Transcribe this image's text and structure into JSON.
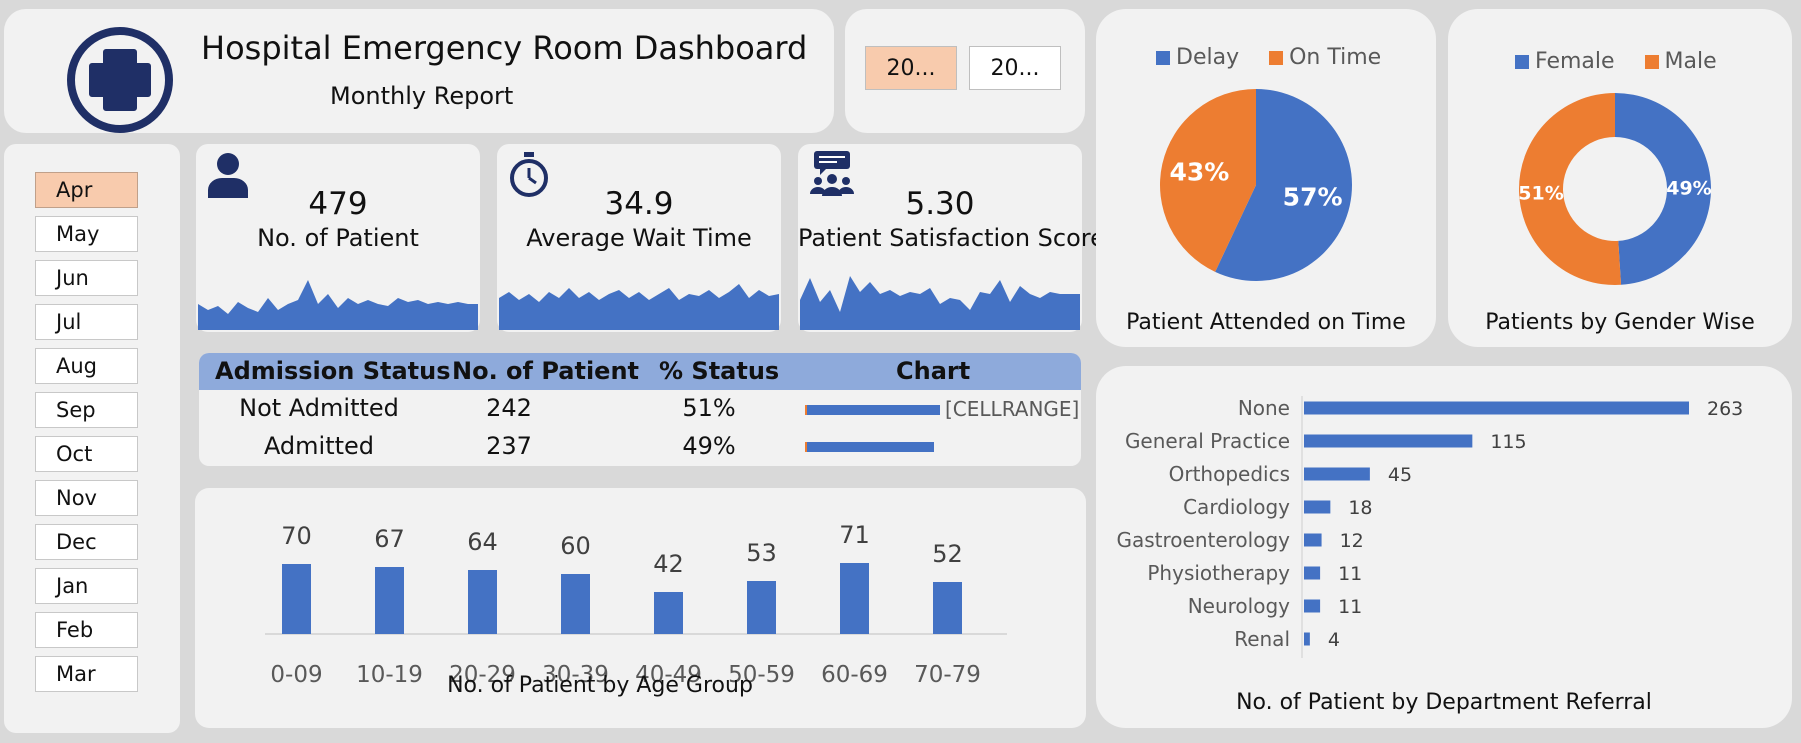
{
  "header": {
    "title": "Hospital Emergency Room Dashboard",
    "subtitle": "Monthly Report"
  },
  "year_slicer": [
    {
      "label": "20...",
      "selected": true
    },
    {
      "label": "20...",
      "selected": false
    }
  ],
  "month_slicer": [
    {
      "label": "Apr",
      "selected": true
    },
    {
      "label": "May"
    },
    {
      "label": "Jun"
    },
    {
      "label": "Jul"
    },
    {
      "label": "Aug"
    },
    {
      "label": "Sep"
    },
    {
      "label": "Oct"
    },
    {
      "label": "Nov"
    },
    {
      "label": "Dec"
    },
    {
      "label": "Jan"
    },
    {
      "label": "Feb"
    },
    {
      "label": "Mar"
    }
  ],
  "kpis": [
    {
      "value": "479",
      "label": "No. of Patient",
      "icon": "person-icon"
    },
    {
      "value": "34.9",
      "label": "Average Wait Time",
      "icon": "stopwatch-icon"
    },
    {
      "value": "5.30",
      "label": "Patient Satisfaction Score",
      "icon": "group-chat-icon"
    }
  ],
  "admission_table": {
    "headers": [
      "Admission Status",
      "No. of Patient",
      "% Status",
      "Chart"
    ],
    "rows": [
      {
        "status": "Not Admitted",
        "count": "242",
        "pct": "51%",
        "bar": 0.51,
        "label": "[CELLRANGE]"
      },
      {
        "status": "Admitted",
        "count": "237",
        "pct": "49%",
        "bar": 0.49,
        "label": ""
      }
    ]
  },
  "colors": {
    "blue": "#4472c4",
    "orange": "#ed7d31",
    "selected": "#f8cbad",
    "table_header": "#8eaadb"
  },
  "chart_data": [
    {
      "type": "bar",
      "title": "No. of Patient by Age Group",
      "categories": [
        "0-09",
        "10-19",
        "20-29",
        "30-39",
        "40-49",
        "50-59",
        "60-69",
        "70-79"
      ],
      "values": [
        70,
        67,
        64,
        60,
        42,
        53,
        71,
        52
      ],
      "ylim": [
        0,
        125
      ]
    },
    {
      "type": "pie",
      "title": "Patient Attended on Time",
      "categories": [
        "Delay",
        "On Time"
      ],
      "values": [
        57,
        43
      ],
      "labels": [
        "57%",
        "43%"
      ],
      "legend": "top"
    },
    {
      "type": "pie",
      "variant": "donut",
      "title": "Patients by Gender Wise",
      "categories": [
        "Female",
        "Male"
      ],
      "values": [
        49,
        51
      ],
      "labels": [
        "49%",
        "51%"
      ],
      "legend": "top"
    },
    {
      "type": "bar",
      "orientation": "horizontal",
      "title": "No. of Patient by Department Referral",
      "categories": [
        "None",
        "General Practice",
        "Orthopedics",
        "Cardiology",
        "Gastroenterology",
        "Physiotherapy",
        "Neurology",
        "Renal"
      ],
      "values": [
        263,
        115,
        45,
        18,
        12,
        11,
        11,
        4
      ]
    }
  ]
}
